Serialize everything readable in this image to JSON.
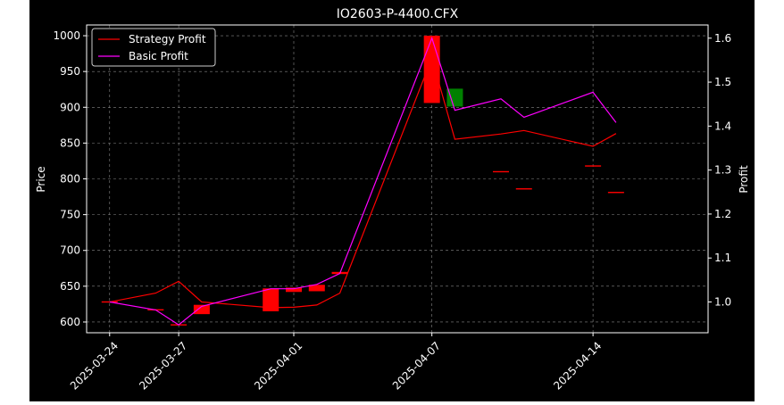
{
  "chart_data": {
    "type": "candlestick+line",
    "title": "IO2603-P-4400.CFX",
    "xlabel": "",
    "ylabel_left": "Price",
    "ylabel_right": "Profit",
    "ylim_left": [
      585,
      1015
    ],
    "ylim_right": [
      0.93,
      1.63
    ],
    "xlim": [
      "2025-03-23",
      "2025-04-19"
    ],
    "x_ticks": [
      "2025-03-24",
      "2025-03-27",
      "2025-04-01",
      "2025-04-07",
      "2025-04-14"
    ],
    "y_ticks_left": [
      600,
      650,
      700,
      750,
      800,
      850,
      900,
      950,
      1000
    ],
    "y_ticks_right": [
      "1.0",
      "1.1",
      "1.2",
      "1.3",
      "1.4",
      "1.5",
      "1.6"
    ],
    "grid": true,
    "legend_position": "top-left",
    "colors": {
      "up": "#008000",
      "down": "#ff0000",
      "strategy": "#ff0000",
      "basic": "#ff00ff",
      "background": "#000000",
      "foreground": "#ffffff"
    },
    "candles": [
      {
        "date": "2025-03-24",
        "open": 628,
        "close": 628
      },
      {
        "date": "2025-03-26",
        "open": 617,
        "close": 617
      },
      {
        "date": "2025-03-27",
        "open": 596,
        "close": 596
      },
      {
        "date": "2025-03-28",
        "open": 624,
        "close": 611
      },
      {
        "date": "2025-03-31",
        "open": 647,
        "close": 615
      },
      {
        "date": "2025-04-01",
        "open": 648,
        "close": 642
      },
      {
        "date": "2025-04-02",
        "open": 652,
        "close": 643
      },
      {
        "date": "2025-04-03",
        "open": 670,
        "close": 667
      },
      {
        "date": "2025-04-07",
        "open": 1000,
        "close": 906
      },
      {
        "date": "2025-04-08",
        "open": 901,
        "close": 926
      },
      {
        "date": "2025-04-10",
        "open": 810,
        "close": 810
      },
      {
        "date": "2025-04-11",
        "open": 786,
        "close": 786
      },
      {
        "date": "2025-04-14",
        "open": 818,
        "close": 818
      },
      {
        "date": "2025-04-15",
        "open": 781,
        "close": 781
      }
    ],
    "series": [
      {
        "name": "Strategy Profit",
        "x": [
          "2025-03-24",
          "2025-03-26",
          "2025-03-27",
          "2025-03-28",
          "2025-03-31",
          "2025-04-01",
          "2025-04-02",
          "2025-04-03",
          "2025-04-07",
          "2025-04-08",
          "2025-04-10",
          "2025-04-11",
          "2025-04-14",
          "2025-04-15"
        ],
        "y": [
          1.0,
          1.02,
          1.047,
          1.0,
          0.987,
          0.988,
          0.993,
          1.02,
          1.555,
          1.37,
          1.382,
          1.39,
          1.354,
          1.383
        ]
      },
      {
        "name": "Basic Profit",
        "x": [
          "2025-03-24",
          "2025-03-26",
          "2025-03-27",
          "2025-03-28",
          "2025-03-31",
          "2025-04-01",
          "2025-04-02",
          "2025-04-03",
          "2025-04-07",
          "2025-04-08",
          "2025-04-10",
          "2025-04-11",
          "2025-04-14",
          "2025-04-15"
        ],
        "y": [
          1.0,
          0.982,
          0.948,
          0.99,
          1.03,
          1.03,
          1.04,
          1.065,
          1.6,
          1.436,
          1.462,
          1.42,
          1.477,
          1.408
        ]
      }
    ]
  }
}
